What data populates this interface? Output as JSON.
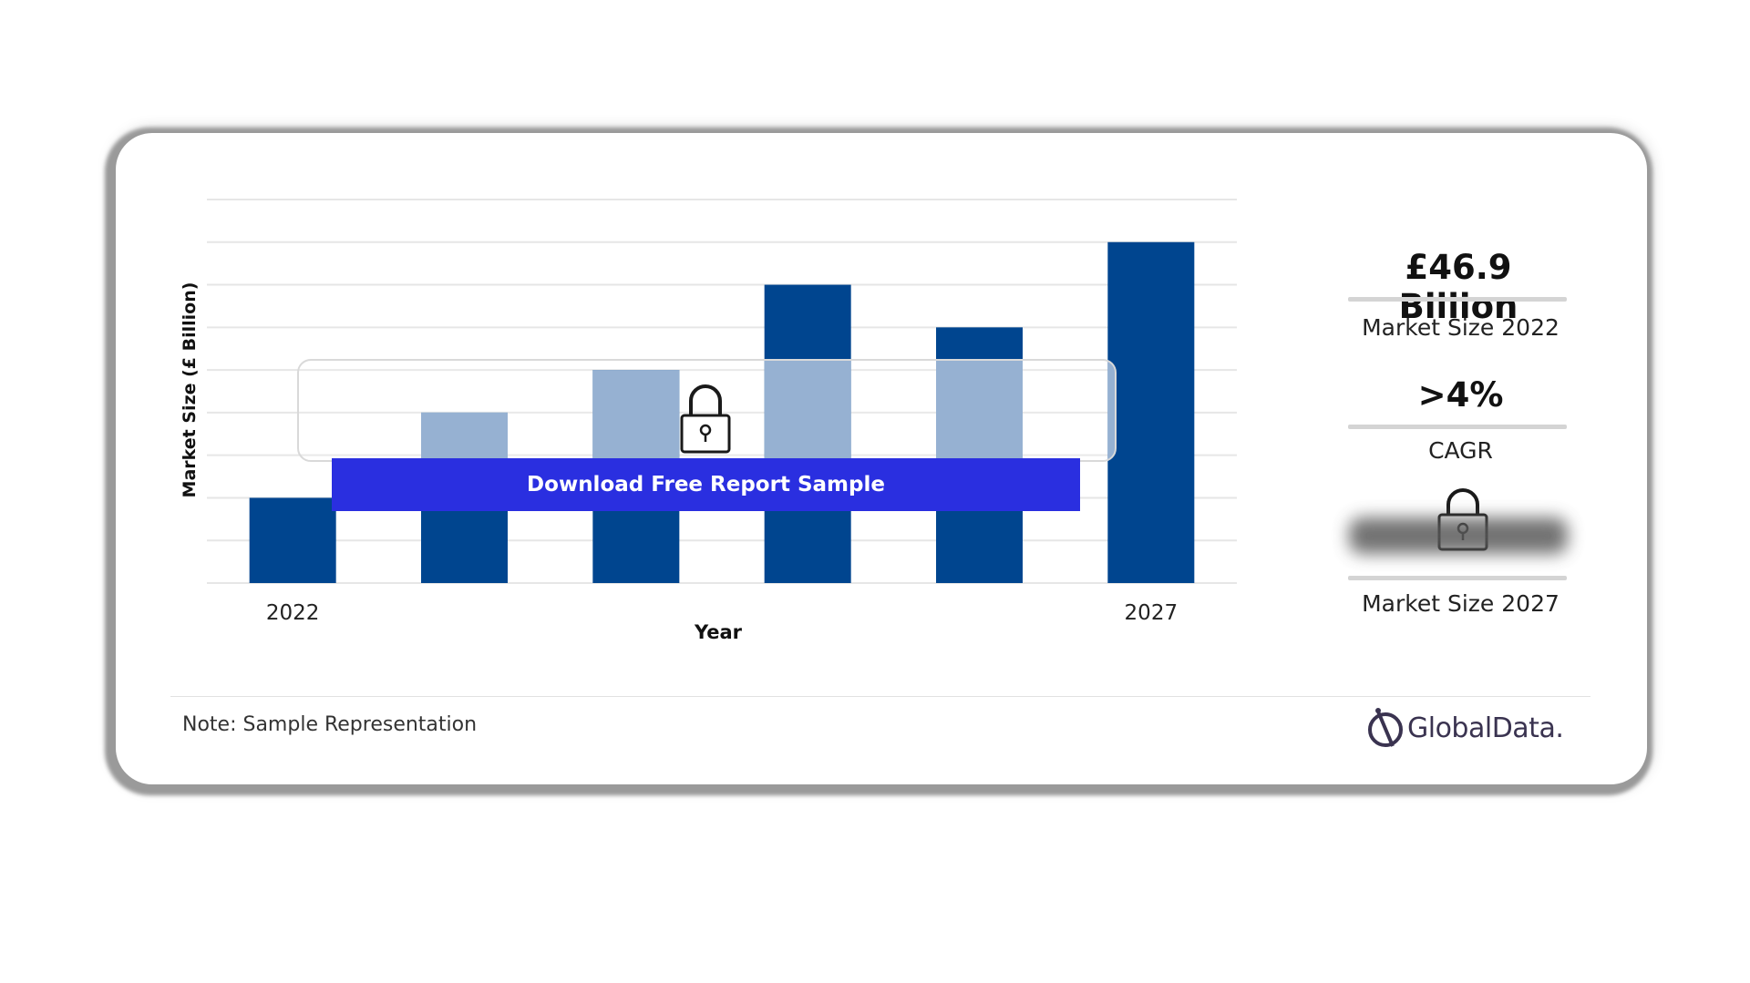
{
  "chart_data": {
    "type": "bar",
    "categories": [
      "2022",
      "",
      "",
      "",
      "",
      "2027"
    ],
    "values": [
      2,
      4,
      5,
      7,
      6,
      8
    ],
    "xlabel": "Year",
    "ylabel": "Market Size (£ Billion)",
    "ylim": [
      0,
      9
    ],
    "grid": true,
    "colors": {
      "bar": "#00458f",
      "bar_faded": "#84a4ca",
      "grid": "#e6e6e6"
    }
  },
  "overlay": {
    "cta_label": "Download Free Report Sample",
    "lock_icon": "padlock-icon"
  },
  "kpis": {
    "market_size_value": "£46.9 Billion",
    "market_size_label": "Market Size 2022",
    "cagr_value": ">4%",
    "cagr_label": "CAGR",
    "market_size_2027_label": "Market Size 2027"
  },
  "footer": {
    "note": "Note: Sample Representation",
    "brand": "GlobalData."
  },
  "colors": {
    "brand_dark": "#00458f",
    "cta": "#2a2fe0",
    "logo": "#3a3350"
  }
}
